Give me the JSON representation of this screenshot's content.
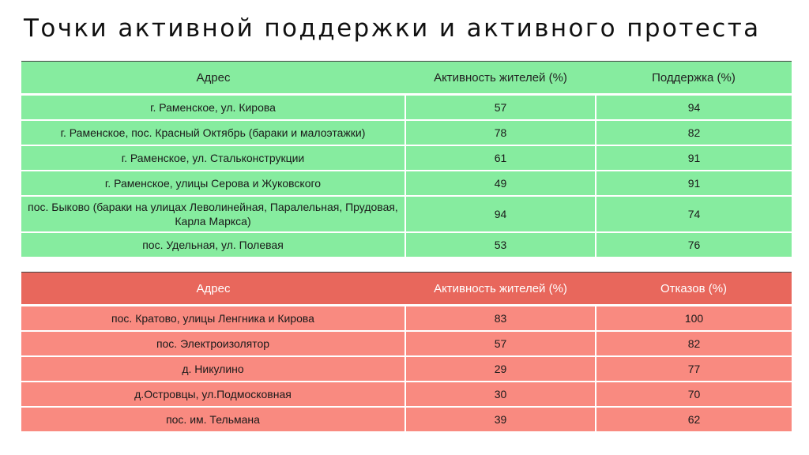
{
  "title": "Точки активной поддержки и активного протеста",
  "colors": {
    "support": "#86ec9f",
    "protest_header": "#e8675c",
    "protest_rows": "#f98a80"
  },
  "support_table": {
    "headers": [
      "Адрес",
      "Активность жителей (%)",
      "Поддержка (%)"
    ],
    "rows": [
      [
        "г. Раменское, ул. Кирова",
        "57",
        "94"
      ],
      [
        "г. Раменское, пос. Красный Октябрь (бараки и малоэтажки)",
        "78",
        "82"
      ],
      [
        "г. Раменское, ул. Стальконструкции",
        "61",
        "91"
      ],
      [
        "г. Раменское, улицы Серова и Жуковского",
        "49",
        "91"
      ],
      [
        "пос. Быково (бараки на улицах Леволинейная, Паралельная, Прудовая, Карла Маркса)",
        "94",
        "74"
      ],
      [
        "пос. Удельная, ул. Полевая",
        "53",
        "76"
      ]
    ]
  },
  "protest_table": {
    "headers": [
      "Адрес",
      "Активность жителей (%)",
      "Отказов (%)"
    ],
    "rows": [
      [
        "пос. Кратово, улицы Ленгника и Кирова",
        "83",
        "100"
      ],
      [
        "пос. Электроизолятор",
        "57",
        "82"
      ],
      [
        "д. Никулино",
        "29",
        "77"
      ],
      [
        "д.Островцы, ул.Подмосковная",
        "30",
        "70"
      ],
      [
        "пос. им. Тельмана",
        "39",
        "62"
      ]
    ]
  }
}
